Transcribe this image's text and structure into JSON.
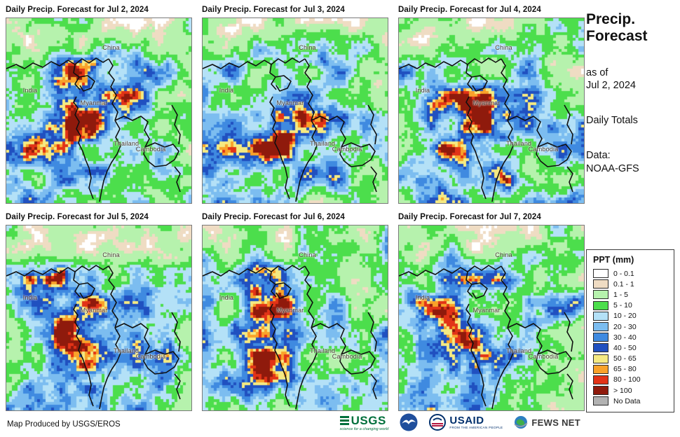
{
  "panels": [
    {
      "title": "Daily Precip. Forecast for Jul 2, 2024"
    },
    {
      "title": "Daily Precip. Forecast for Jul 3, 2024"
    },
    {
      "title": "Daily Precip. Forecast for Jul 4, 2024"
    },
    {
      "title": "Daily Precip. Forecast for Jul 5, 2024"
    },
    {
      "title": "Daily Precip. Forecast for Jul 6, 2024"
    },
    {
      "title": "Daily Precip. Forecast for Jul 7, 2024"
    }
  ],
  "map_labels": [
    "China",
    "India",
    "Myanmar",
    "Thailand",
    "Cambodia"
  ],
  "sidebar": {
    "title": "Precip.\nForecast",
    "as_of": "as of\nJul 2, 2024",
    "daily_totals": "Daily Totals",
    "data_source": "Data:\nNOAA-GFS"
  },
  "legend": {
    "title": "PPT (mm)",
    "items": [
      {
        "label": "0 - 0.1",
        "color": "#FFFFFF"
      },
      {
        "label": "0.1 - 1",
        "color": "#EFDCC3"
      },
      {
        "label": "1 - 5",
        "color": "#B6F2AD"
      },
      {
        "label": "5 - 10",
        "color": "#4CDE4C"
      },
      {
        "label": "10 - 20",
        "color": "#B4E1F7"
      },
      {
        "label": "20 - 30",
        "color": "#7CBDF0"
      },
      {
        "label": "30 - 40",
        "color": "#3F8AE0"
      },
      {
        "label": "40 - 50",
        "color": "#2050C0"
      },
      {
        "label": "50 - 65",
        "color": "#F5EA82"
      },
      {
        "label": "65 - 80",
        "color": "#F9A22A"
      },
      {
        "label": "80 - 100",
        "color": "#E23317"
      },
      {
        "label": "> 100",
        "color": "#8F1A0C"
      },
      {
        "label": "No Data",
        "color": "#B2B2B2"
      }
    ]
  },
  "footer": {
    "credit": "Map Produced by USGS/EROS"
  },
  "logos": {
    "usgs": {
      "text": "USGS",
      "tagline": "science for a changing world"
    },
    "usaid": {
      "text": "USAID",
      "tagline": "FROM THE AMERICAN PEOPLE"
    },
    "fews": {
      "text": "FEWS NET"
    }
  }
}
